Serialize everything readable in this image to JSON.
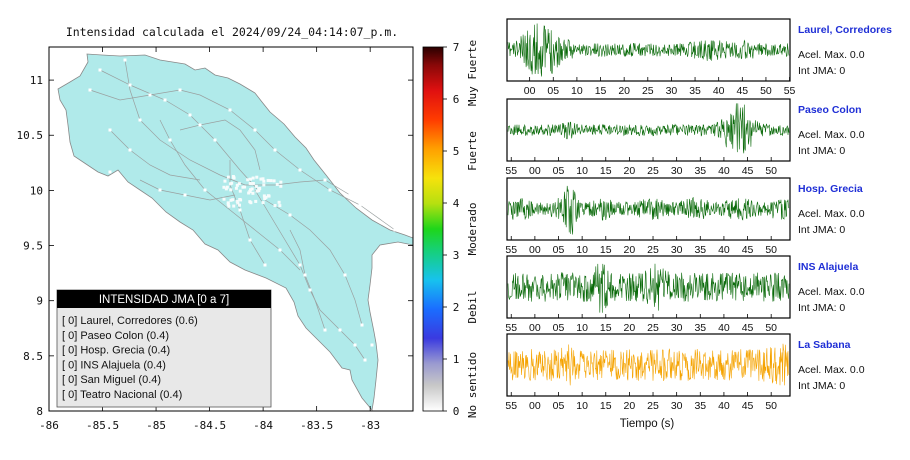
{
  "map": {
    "title": "Intensidad calculada el 2024/09/24_04:14:07_p.m.",
    "x_ticks": [
      "-86",
      "-85.5",
      "-85",
      "-84.5",
      "-84",
      "-83.5",
      "-83"
    ],
    "y_ticks": [
      "11",
      "10.5",
      "10",
      "9.5",
      "9",
      "8.5",
      "8"
    ],
    "land_color": "#b0eaea",
    "legend": {
      "title": "INTENSIDAD JMA [0 a 7]",
      "entries": [
        "[ 0]  Laurel, Corredores (0.6)",
        "[ 0]  Paseo Colon (0.4)",
        "[ 0]  Hosp. Grecia (0.4)",
        "[ 0]  INS Alajuela (0.4)",
        "[ 0]  San Miguel (0.4)",
        "[ 0]  Teatro Nacional (0.4)"
      ]
    }
  },
  "colorbar": {
    "ticks": [
      "7",
      "6",
      "5",
      "4",
      "3",
      "2",
      "1",
      "0"
    ],
    "categories": [
      "Muy Fuerte",
      "Fuerte",
      "Moderado",
      "Debil",
      "No sentido"
    ]
  },
  "traces": {
    "xlabel": "Tiempo (s)",
    "stations": [
      {
        "name": "Laurel, Corredores",
        "accel": "Acel. Max. 0.0",
        "jma": "Int JMA: 0",
        "color": "#0a6a0a",
        "ticks": [
          "00",
          "05",
          "10",
          "15",
          "20",
          "25",
          "30",
          "35",
          "40",
          "45",
          "50",
          "55"
        ]
      },
      {
        "name": "Paseo Colon",
        "accel": "Acel. Max. 0.0",
        "jma": "Int JMA: 0",
        "color": "#0a6a0a",
        "ticks": [
          "55",
          "00",
          "05",
          "10",
          "15",
          "20",
          "25",
          "30",
          "35",
          "40",
          "45",
          "50"
        ]
      },
      {
        "name": "Hosp. Grecia",
        "accel": "Acel. Max. 0.0",
        "jma": "Int JMA: 0",
        "color": "#0a6a0a",
        "ticks": [
          "55",
          "00",
          "05",
          "10",
          "15",
          "20",
          "25",
          "30",
          "35",
          "40",
          "45",
          "50"
        ]
      },
      {
        "name": "INS Alajuela",
        "accel": "Acel. Max. 0.0",
        "jma": "Int JMA: 0",
        "color": "#0a6a0a",
        "ticks": [
          "55",
          "00",
          "05",
          "10",
          "15",
          "20",
          "25",
          "30",
          "35",
          "40",
          "45",
          "50"
        ]
      },
      {
        "name": "La Sabana",
        "accel": "Acel. Max. 0.0",
        "jma": "Int JMA: 0",
        "color": "#f5a300",
        "ticks": [
          "55",
          "00",
          "05",
          "10",
          "15",
          "20",
          "25",
          "30",
          "35",
          "40",
          "45",
          "50"
        ]
      }
    ]
  },
  "chart_data": {
    "type": "line",
    "title": "Intensidad calculada el 2024/09/24_04:14:07_p.m.",
    "xlabel": "Tiempo (s)",
    "series": [
      {
        "name": "Laurel, Corredores",
        "values": [],
        "color": "#0a6a0a"
      },
      {
        "name": "Paseo Colon",
        "values": [],
        "color": "#0a6a0a"
      },
      {
        "name": "Hosp. Grecia",
        "values": [],
        "color": "#0a6a0a"
      },
      {
        "name": "INS Alajuela",
        "values": [],
        "color": "#0a6a0a"
      },
      {
        "name": "La Sabana",
        "values": [],
        "color": "#f5a300"
      }
    ],
    "map_xlim": [
      -86,
      -82.6
    ],
    "map_ylim": [
      8,
      11.3
    ],
    "colorbar_range": [
      0,
      7
    ]
  }
}
